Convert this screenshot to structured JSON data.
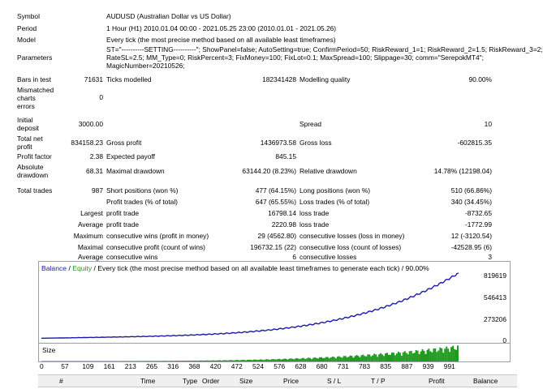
{
  "report": {
    "symbol_label": "Symbol",
    "symbol_value": "AUDUSD (Australian Dollar vs US Dollar)",
    "period_label": "Period",
    "period_value": "1 Hour (H1) 2010.01.04 00:00 - 2021.05.25 23:00 (2010.01.01 - 2021.05.26)",
    "model_label": "Model",
    "model_value": "Every tick (the most precise method based on all available least timeframes)",
    "params_label": "Parameters",
    "params_line1": "ST=\"----------SETTING----------\"; ShowPanel=false; AutoSetting=true; ConfirmPeriod=50; RiskReward_1=1; RiskReward_2=1.5; RiskReward_3=2;",
    "params_line2": "RateSL=2.5; MM_Type=0; RiskPercent=3; FixMoney=100; FixLot=0.1; MaxSpread=100; Slippage=30; comm=\"SerepokMT4\";",
    "params_line3": "MagicNumber=20210526;",
    "bars_label": "Bars in test",
    "bars_value": "71631",
    "ticks_label": "Ticks modelled",
    "ticks_value": "182341428",
    "quality_label": "Modelling quality",
    "quality_value": "90.00%",
    "mismatch_label1": "Mismatched",
    "mismatch_label2": "charts",
    "mismatch_label3": "errors",
    "mismatch_value": "0",
    "deposit_label1": "Initial",
    "deposit_label2": "deposit",
    "deposit_value": "3000.00",
    "spread_label": "Spread",
    "spread_value": "10",
    "netprofit_label1": "Total net",
    "netprofit_label2": "profit",
    "netprofit_value": "834158.23",
    "grossprofit_label": "Gross profit",
    "grossprofit_value": "1436973.58",
    "grossloss_label": "Gross loss",
    "grossloss_value": "-602815.35",
    "pf_label": "Profit factor",
    "pf_value": "2.38",
    "ep_label": "Expected payoff",
    "ep_value": "845.15",
    "absdd_label1": "Absolute",
    "absdd_label2": "drawdown",
    "absdd_value": "68.31",
    "maxdd_label": "Maximal drawdown",
    "maxdd_value": "63144.20 (8.23%)",
    "reldd_label": "Relative drawdown",
    "reldd_value": "14.78% (12198.04)",
    "trades_label": "Total trades",
    "trades_value": "987",
    "short_label": "Short positions (won %)",
    "short_value": "477 (64.15%)",
    "long_label": "Long positions (won %)",
    "long_value": "510 (66.86%)",
    "ptrades_label": "Profit trades (% of total)",
    "ptrades_value": "647 (65.55%)",
    "ltrades_label": "Loss trades (% of total)",
    "ltrades_value": "340 (34.45%)",
    "largest_label": "Largest",
    "largest_pt_label": "profit trade",
    "largest_pt_value": "16798.14",
    "largest_lt_label": "loss trade",
    "largest_lt_value": "-8732.65",
    "average_label": "Average",
    "average_pt_label": "profit trade",
    "average_pt_value": "2220.98",
    "average_lt_label": "loss trade",
    "average_lt_value": "-1772.99",
    "maximum_label": "Maximum",
    "max_cw_label": "consecutive wins (profit in money)",
    "max_cw_value": "29 (4562.80)",
    "max_cl_label": "consecutive losses (loss in money)",
    "max_cl_value": "12 (-3120.54)",
    "maximal_label": "Maximal",
    "mxl_cp_label": "consecutive profit (count of wins)",
    "mxl_cp_value": "196732.15 (22)",
    "mxl_cl_label": "consecutive loss (count of losses)",
    "mxl_cl_value": "-42528.95 (6)",
    "average2_label": "Average",
    "avg_cw_label": "consecutive wins",
    "avg_cw_value": "6",
    "avg_cl_label": "consecutive losses",
    "avg_cl_value": "3"
  },
  "graph": {
    "title_balance": "Balance",
    "title_sep": " / ",
    "title_equity": "Equity",
    "title_rest": " / Every tick (the most precise method based on all available least timeframes to generate each tick) / 90.00%",
    "y_ticks": [
      "819619",
      "546413",
      "273206",
      "0"
    ],
    "size_label": "Size",
    "balance_color": "#1a1aa6",
    "equity_color": "#1f9a1f",
    "x_ticks": [
      "0",
      "57",
      "109",
      "161",
      "213",
      "265",
      "316",
      "368",
      "420",
      "472",
      "524",
      "576",
      "628",
      "680",
      "731",
      "783",
      "835",
      "887",
      "939",
      "991"
    ]
  },
  "columns": [
    "#",
    "Time",
    "Type",
    "Order",
    "Size",
    "Price",
    "S / L",
    "T / P",
    "Profit",
    "Balance"
  ]
}
